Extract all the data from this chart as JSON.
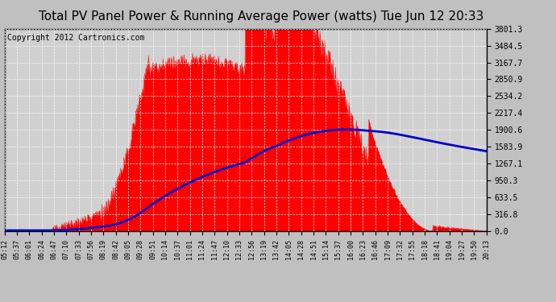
{
  "title": "Total PV Panel Power & Running Average Power (watts) Tue Jun 12 20:33",
  "copyright": "Copyright 2012 Cartronics.com",
  "background_color": "#c0c0c0",
  "plot_background": "#d0d0d0",
  "y_ticks": [
    0.0,
    316.8,
    633.5,
    950.3,
    1267.1,
    1583.9,
    1900.6,
    2217.4,
    2534.2,
    2850.9,
    3167.7,
    3484.5,
    3801.3
  ],
  "y_max": 3801.3,
  "x_labels": [
    "05:12",
    "05:37",
    "06:01",
    "06:24",
    "06:47",
    "07:10",
    "07:33",
    "07:56",
    "08:19",
    "08:42",
    "09:05",
    "09:28",
    "09:51",
    "10:14",
    "10:37",
    "11:01",
    "11:24",
    "11:47",
    "12:10",
    "12:33",
    "12:56",
    "13:19",
    "13:42",
    "14:05",
    "14:28",
    "14:51",
    "15:14",
    "15:37",
    "16:00",
    "16:23",
    "16:46",
    "17:09",
    "17:32",
    "17:55",
    "18:18",
    "18:41",
    "19:04",
    "19:27",
    "19:50",
    "20:13"
  ],
  "pv_color": "#ff0000",
  "avg_color": "#0000cc",
  "grid_color": "#ffffff",
  "title_fontsize": 11,
  "copyright_fontsize": 7
}
